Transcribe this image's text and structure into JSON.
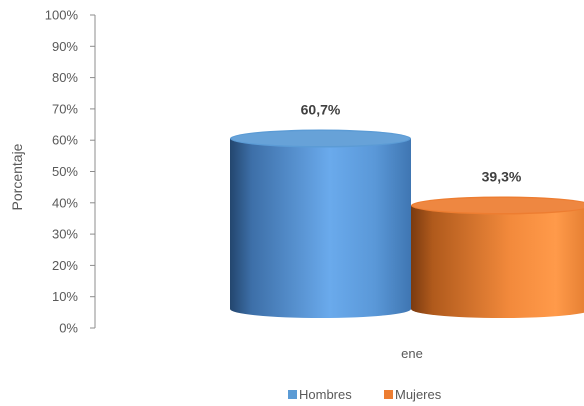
{
  "chart_data": {
    "type": "bar",
    "style": "3d-cylinder",
    "categories": [
      "ene"
    ],
    "series": [
      {
        "name": "Hombres",
        "values": [
          60.7
        ],
        "label": "60,7%",
        "color": "#5B9BD5"
      },
      {
        "name": "Mujeres",
        "values": [
          39.3
        ],
        "label": "39,3%",
        "color": "#ED7D31"
      }
    ],
    "ylabel": "Porcentaje",
    "ylim": [
      0,
      100
    ],
    "yticks": [
      "0%",
      "10%",
      "20%",
      "30%",
      "40%",
      "50%",
      "60%",
      "70%",
      "80%",
      "90%",
      "100%"
    ],
    "grid": false,
    "legend": "bottom"
  }
}
